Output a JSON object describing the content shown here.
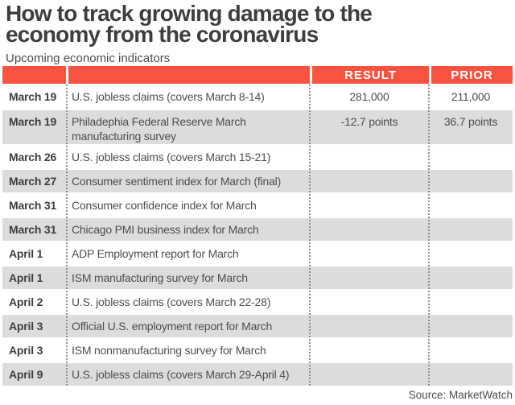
{
  "header": {
    "title_line1": "How to track growing damage to the",
    "title_line2": "economy from the coronavirus",
    "subtitle": "Upcoming economic indicators"
  },
  "table": {
    "header": {
      "date_label": "",
      "indicator_label": "",
      "result_label": "RESULT",
      "prior_label": "PRIOR"
    },
    "rows": [
      {
        "date": "March 19",
        "indicator": "U.S. jobless claims (covers March 8-14)",
        "result": "281,000",
        "prior": "211,000"
      },
      {
        "date": "March 19",
        "indicator": "Philadephia Federal Reserve March manufacturing survey",
        "result": "-12.7 points",
        "prior": "36.7 points"
      },
      {
        "date": "March 26",
        "indicator": "U.S. jobless claims (covers March 15-21)",
        "result": "",
        "prior": ""
      },
      {
        "date": "March 27",
        "indicator": "Consumer sentiment index for March (final)",
        "result": "",
        "prior": ""
      },
      {
        "date": "March 31",
        "indicator": "Consumer confidence index for March",
        "result": "",
        "prior": ""
      },
      {
        "date": "March 31",
        "indicator": "Chicago PMI business index for March",
        "result": "",
        "prior": ""
      },
      {
        "date": "April 1",
        "indicator": "ADP Employment report for March",
        "result": "",
        "prior": ""
      },
      {
        "date": "April 1",
        "indicator": "ISM manufacturing survey for March",
        "result": "",
        "prior": ""
      },
      {
        "date": "April 2",
        "indicator": "U.S. jobless claims (covers March 22-28)",
        "result": "",
        "prior": ""
      },
      {
        "date": "April 3",
        "indicator": "Official U.S. employment report for March",
        "result": "",
        "prior": ""
      },
      {
        "date": "April 3",
        "indicator": "ISM nonmanufacturing survey for March",
        "result": "",
        "prior": ""
      },
      {
        "date": "April 9",
        "indicator": "U.S. jobless claims (covers March 29-April 4)",
        "result": "",
        "prior": ""
      }
    ]
  },
  "footer": {
    "source": "Source: MarketWatch"
  },
  "colors": {
    "accent_orange": "#fa5440",
    "alt_row_gray": "#dcdcdc",
    "title_text": "#3e3e3e",
    "body_text": "#4d4d4d",
    "header_text": "#ffffff",
    "dotted_divider": "#8f8f8f",
    "background": "#ffffff"
  },
  "chart_data": {
    "type": "table",
    "title": "How to track growing damage to the economy from the coronavirus",
    "subtitle": "Upcoming economic indicators",
    "source": "Source: MarketWatch",
    "columns": [
      "",
      "",
      "RESULT",
      "PRIOR"
    ],
    "rows": [
      [
        "March 19",
        "U.S. jobless claims (covers March 8-14)",
        "281,000",
        "211,000"
      ],
      [
        "March 19",
        "Philadephia Federal Reserve March manufacturing survey",
        "-12.7 points",
        "36.7 points"
      ],
      [
        "March 26",
        "U.S. jobless claims (covers March 15-21)",
        "",
        ""
      ],
      [
        "March 27",
        "Consumer sentiment index for March (final)",
        "",
        ""
      ],
      [
        "March 31",
        "Consumer confidence index for March",
        "",
        ""
      ],
      [
        "March 31",
        "Chicago PMI business index for March",
        "",
        ""
      ],
      [
        "April 1",
        "ADP Employment report for March",
        "",
        ""
      ],
      [
        "April 1",
        "ISM manufacturing survey for March",
        "",
        ""
      ],
      [
        "April 2",
        "U.S. jobless claims (covers March 22-28)",
        "",
        ""
      ],
      [
        "April 3",
        "Official U.S. employment report for March",
        "",
        ""
      ],
      [
        "April 3",
        "ISM nonmanufacturing survey for March",
        "",
        ""
      ],
      [
        "April 9",
        "U.S. jobless claims (covers March 29-April 4)",
        "",
        ""
      ]
    ],
    "layout": {
      "zebra_striping": true,
      "column_dividers": "dotted",
      "header_fill": "#fa5440"
    }
  }
}
